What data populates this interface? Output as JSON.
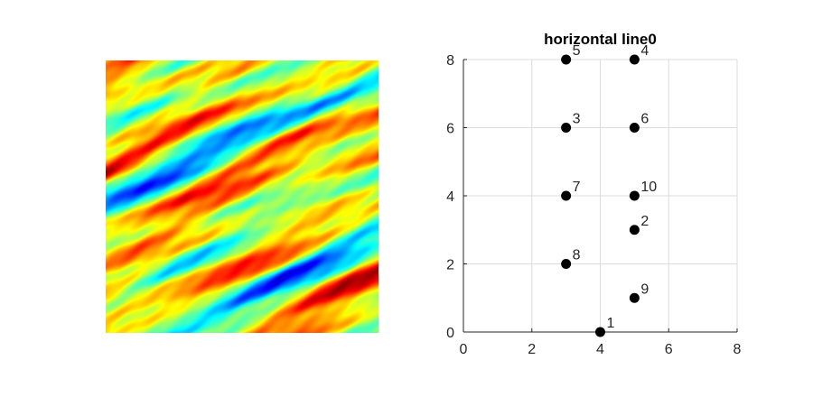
{
  "field_image": {
    "description_colormap": "jet",
    "colors": [
      "#00007f",
      "#0000ff",
      "#00ffff",
      "#ffff00",
      "#ff0000",
      "#7f0000"
    ]
  },
  "chart_data": {
    "type": "scatter",
    "title": "horizontal line0",
    "xlabel": "",
    "ylabel": "",
    "xlim": [
      0,
      8
    ],
    "ylim": [
      0,
      8
    ],
    "xticks": [
      0,
      2,
      4,
      6,
      8
    ],
    "yticks": [
      0,
      2,
      4,
      6,
      8
    ],
    "grid": true,
    "marker_color": "#000000",
    "points": [
      {
        "label": "1",
        "x": 4,
        "y": 0
      },
      {
        "label": "2",
        "x": 5,
        "y": 3
      },
      {
        "label": "3",
        "x": 3,
        "y": 6
      },
      {
        "label": "4",
        "x": 5,
        "y": 8
      },
      {
        "label": "5",
        "x": 3,
        "y": 8
      },
      {
        "label": "6",
        "x": 5,
        "y": 6
      },
      {
        "label": "7",
        "x": 3,
        "y": 4
      },
      {
        "label": "8",
        "x": 3,
        "y": 2
      },
      {
        "label": "9",
        "x": 5,
        "y": 1
      },
      {
        "label": "10",
        "x": 5,
        "y": 4
      }
    ]
  }
}
